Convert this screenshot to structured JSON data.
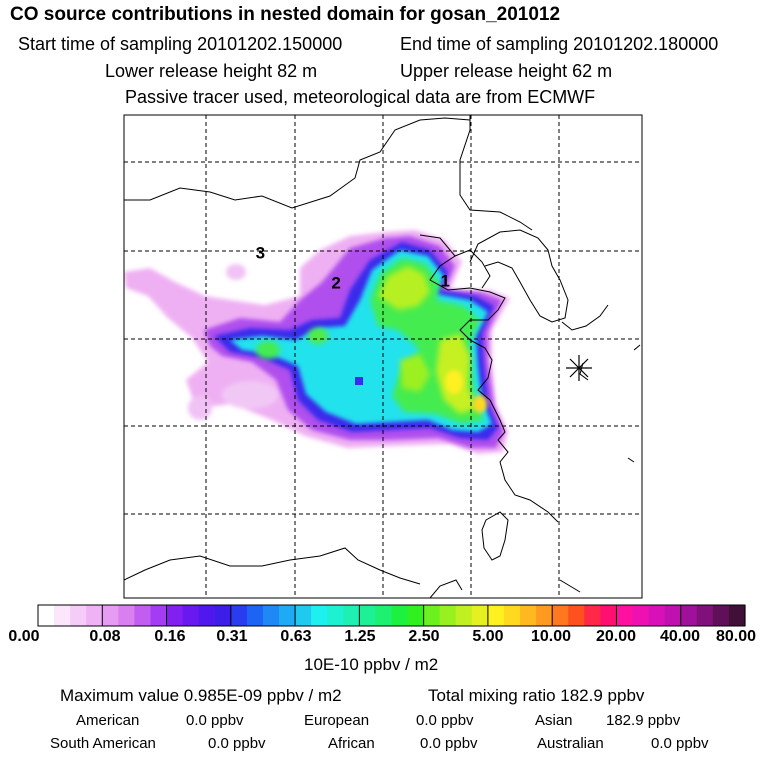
{
  "header": {
    "title": "CO  source contributions in nested domain for gosan_201012",
    "start_sampling": "Start time of sampling 20101202.150000",
    "end_sampling": "End time of sampling 20101202.180000",
    "lower_release": "Lower release height   82 m",
    "upper_release": "Upper release height   62 m",
    "tracer_info": "Passive tracer used, meteorological data are from ECMWF"
  },
  "map": {
    "markers": [
      {
        "label": "1",
        "lon": 123.0,
        "lat": 35.7
      },
      {
        "label": "2",
        "lon": 116.8,
        "lat": 35.6
      },
      {
        "label": "3",
        "lon": 112.5,
        "lat": 37.3
      }
    ],
    "receptor_icon": "asterisk-receptor-icon",
    "colors": {
      "grid": "#000000",
      "coast": "#000000"
    }
  },
  "colorbar": {
    "tick_labels": [
      "0.00",
      "0.08",
      "0.16",
      "0.31",
      "0.63",
      "1.25",
      "2.50",
      "5.00",
      "10.00",
      "20.00",
      "40.00",
      "80.00"
    ],
    "units": "10E-10 ppbv / m2",
    "segment_colors": [
      "#ffffff",
      "#fbe6fb",
      "#f5ccf8",
      "#efb3f5",
      "#e69cf2",
      "#d97ff0",
      "#c35cf0",
      "#a33cf2",
      "#8220f2",
      "#6a18f0",
      "#5018ee",
      "#3c1ee8",
      "#2a3cf0",
      "#1e64f4",
      "#1e88f4",
      "#1eaaf4",
      "#1ecaf0",
      "#1ef0f0",
      "#1ef0d2",
      "#1ef0b4",
      "#1ef096",
      "#1ef070",
      "#1ef040",
      "#30f020",
      "#6cf020",
      "#98f020",
      "#c0f020",
      "#e6f020",
      "#fff020",
      "#ffd820",
      "#ffb820",
      "#ff9a20",
      "#ff7820",
      "#ff5020",
      "#ff2848",
      "#ff1070",
      "#ff10a0",
      "#ee10b0",
      "#d810b8",
      "#c010b0",
      "#a0109a",
      "#80107a",
      "#601058",
      "#401038"
    ]
  },
  "stats": {
    "max_value": "Maximum value  0.985E-09 ppbv / m2",
    "total_mixing": "Total mixing ratio       182.9 ppbv",
    "american": "American",
    "american_val": "0.0 ppbv",
    "european": "European",
    "european_val": "0.0 ppbv",
    "asian": "Asian",
    "asian_val": "182.9 ppbv",
    "south_american": "South American",
    "south_american_val": "0.0 ppbv",
    "african": "African",
    "african_val": "0.0 ppbv",
    "australian": "Australian",
    "australian_val": "0.0 ppbv"
  }
}
